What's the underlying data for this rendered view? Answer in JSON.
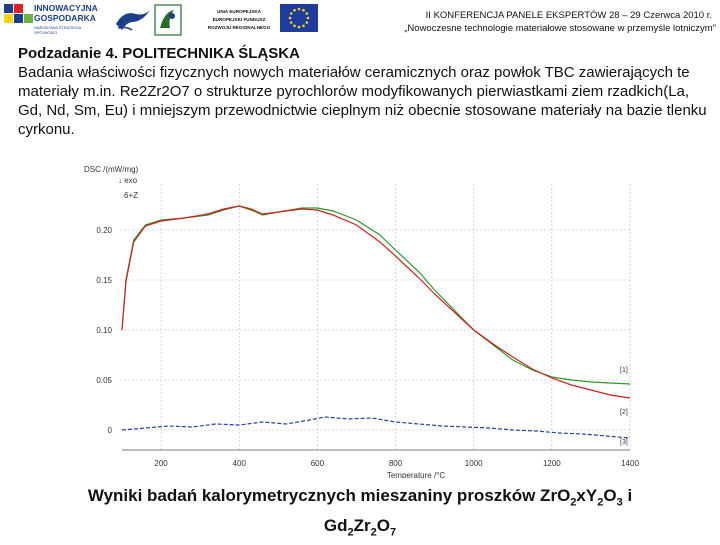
{
  "header": {
    "logo_ig": {
      "line1": "INNOWACYJNA",
      "line2": "GOSPODARKA",
      "line3": "NARODOWA STRATEGIA SPÓJNOŚCI"
    },
    "ue_text": [
      "UNIA EUROPEJSKA",
      "EUROPEJSKI FUNDUSZ",
      "ROZWOJU REGIONALNEGO"
    ],
    "conference_line1": "II KONFERENCJA PANELE EKSPERTÓW    28 – 29 Czerwca 2010 r.",
    "conference_line2": "„Nowoczesne technologie materiałowe stosowane w przemyśle lotniczym\"",
    "colors": {
      "ig_blue": "#1c3f8a",
      "eu_blue": "#1f3c9c",
      "eu_star": "#f5d90a"
    }
  },
  "slide": {
    "heading": "Podzadanie 4. POLITECHNIKA ŚLĄSKA",
    "body": "Badania właściwości fizycznych nowych materiałów ceramicznych oraz powłok TBC zawierających te materiały m.in. Re2Zr2O7 o strukturze pyrochlorów modyfikowanych pierwiastkami ziem rzadkich(La, Gd, Nd, Sm, Eu) i mniejszym przewodnictwie cieplnym niż obecnie stosowane materiały na bazie tlenku cyrkonu.",
    "caption": {
      "part1": "Wyniki badań kalorymetrycznych mieszaniny proszków Zr",
      "part2": "O",
      "sub1": "2",
      "part3": "x",
      "part4": "Y",
      "sub2": "2",
      "part5": "O",
      "sub3": "3",
      "part6": " i",
      "part7": "Gd",
      "sub4": "2",
      "part8": "Zr",
      "sub5": "2",
      "part9": "O",
      "sub6": "7"
    }
  },
  "chart_data": {
    "type": "line",
    "ylabel": "DSC /(mW/mg)",
    "exo_label": "↓ exo",
    "xlabel": "Temperature /°C",
    "annotation": "6+Z",
    "x_ticks": [
      200,
      400,
      600,
      800,
      1000,
      1200,
      1400
    ],
    "y_ticks": [
      "0",
      "0.05",
      "0.10",
      "0.15",
      "0.20"
    ],
    "xlim": [
      100,
      1400
    ],
    "ylim": [
      -0.02,
      0.24
    ],
    "grid": true,
    "series": [
      {
        "name": "[1]",
        "color": "#2a9a2a",
        "x": [
          100,
          110,
          130,
          160,
          200,
          260,
          320,
          360,
          400,
          430,
          460,
          500,
          560,
          600,
          640,
          700,
          760,
          800,
          860,
          900,
          950,
          1000,
          1050,
          1100,
          1150,
          1200,
          1250,
          1300,
          1350,
          1400
        ],
        "y": [
          0.1,
          0.15,
          0.19,
          0.205,
          0.21,
          0.212,
          0.215,
          0.22,
          0.224,
          0.22,
          0.215,
          0.218,
          0.222,
          0.222,
          0.219,
          0.21,
          0.195,
          0.18,
          0.158,
          0.14,
          0.12,
          0.1,
          0.085,
          0.07,
          0.06,
          0.053,
          0.05,
          0.048,
          0.047,
          0.046
        ]
      },
      {
        "name": "[2]",
        "color": "#d02020",
        "x": [
          100,
          110,
          130,
          160,
          200,
          260,
          320,
          360,
          400,
          430,
          460,
          500,
          560,
          600,
          640,
          700,
          760,
          800,
          860,
          900,
          950,
          1000,
          1050,
          1100,
          1150,
          1200,
          1250,
          1300,
          1350,
          1400
        ],
        "y": [
          0.1,
          0.148,
          0.188,
          0.204,
          0.209,
          0.212,
          0.216,
          0.221,
          0.224,
          0.221,
          0.216,
          0.218,
          0.221,
          0.22,
          0.215,
          0.205,
          0.188,
          0.174,
          0.152,
          0.136,
          0.118,
          0.1,
          0.086,
          0.073,
          0.061,
          0.052,
          0.045,
          0.04,
          0.035,
          0.032
        ]
      },
      {
        "name": "[3]",
        "color": "#2a3f9a",
        "x": [
          100,
          160,
          220,
          280,
          340,
          400,
          460,
          520,
          580,
          620,
          680,
          740,
          800,
          860,
          920,
          980,
          1040,
          1100,
          1160,
          1220,
          1280,
          1340,
          1400
        ],
        "y": [
          0.0,
          0.002,
          0.004,
          0.003,
          0.006,
          0.005,
          0.008,
          0.006,
          0.01,
          0.013,
          0.011,
          0.012,
          0.008,
          0.006,
          0.004,
          0.003,
          0.002,
          0.0,
          -0.001,
          -0.003,
          -0.004,
          -0.006,
          -0.008
        ]
      }
    ]
  }
}
